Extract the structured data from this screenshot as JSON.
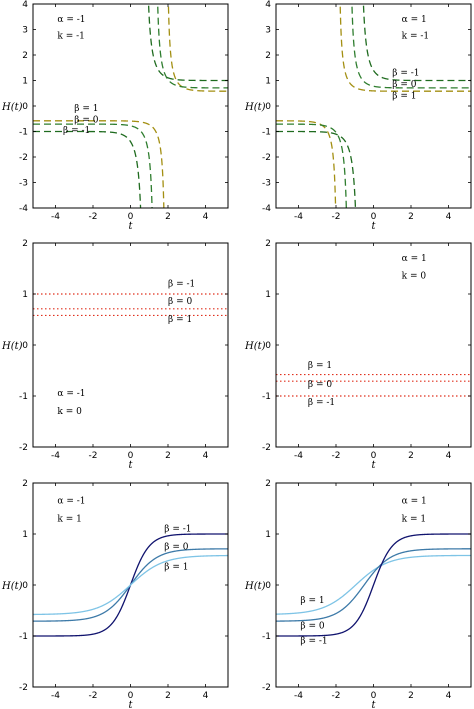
{
  "chart_data": [
    {
      "type": "line",
      "xlabel": "t",
      "ylabel": "H(t)",
      "xlim": [
        -5.2,
        5.2
      ],
      "ylim": [
        -4,
        4
      ],
      "xticks": [
        -4,
        -2,
        0,
        2,
        4
      ],
      "yticks": [
        -4,
        -3,
        -2,
        -1,
        0,
        1,
        2,
        3,
        4
      ],
      "line_style": "dashed",
      "annotations": [
        {
          "text": "α = -1",
          "x": -3.9,
          "y": 3.3
        },
        {
          "text": "k = -1",
          "x": -3.9,
          "y": 2.65
        },
        {
          "text": "β = 1",
          "x": -3.0,
          "y": -0.2
        },
        {
          "text": "β = 0",
          "x": -3.0,
          "y": -0.65
        },
        {
          "text": "β = -1",
          "x": -3.6,
          "y": -1.05
        }
      ],
      "series": [
        {
          "label": "β = 1",
          "color": "#a38f12",
          "asymptote": 1.9,
          "low": -0.58,
          "high": 0.58
        },
        {
          "label": "β = 0",
          "color": "#2e7d2e",
          "asymptote": 1.3,
          "low": -0.71,
          "high": 0.71
        },
        {
          "label": "β = -1",
          "color": "#1f6b1f",
          "asymptote": 0.75,
          "low": -1.0,
          "high": 1.0
        }
      ]
    },
    {
      "type": "line",
      "xlabel": "t",
      "ylabel": "H(t)",
      "xlim": [
        -5.2,
        5.2
      ],
      "ylim": [
        -4,
        4
      ],
      "xticks": [
        -4,
        -2,
        0,
        2,
        4
      ],
      "yticks": [
        -4,
        -3,
        -2,
        -1,
        0,
        1,
        2,
        3,
        4
      ],
      "line_style": "dashed",
      "annotations": [
        {
          "text": "α = 1",
          "x": 1.5,
          "y": 3.3
        },
        {
          "text": "k = -1",
          "x": 1.5,
          "y": 2.65
        },
        {
          "text": "β = -1",
          "x": 1.0,
          "y": 1.2
        },
        {
          "text": "β = 0",
          "x": 1.0,
          "y": 0.75
        },
        {
          "text": "β = 1",
          "x": 1.0,
          "y": 0.3
        }
      ],
      "series": [
        {
          "label": "β = 1",
          "color": "#a38f12",
          "asymptote": -1.9,
          "low": -0.58,
          "high": 0.58
        },
        {
          "label": "β = 0",
          "color": "#2e7d2e",
          "asymptote": -1.3,
          "low": -0.71,
          "high": 0.71
        },
        {
          "label": "β = -1",
          "color": "#1f6b1f",
          "asymptote": -0.75,
          "low": -1.0,
          "high": 1.0
        }
      ]
    },
    {
      "type": "line",
      "xlabel": "t",
      "ylabel": "H(t)",
      "xlim": [
        -5.2,
        5.2
      ],
      "ylim": [
        -2,
        2
      ],
      "xticks": [
        -4,
        -2,
        0,
        2,
        4
      ],
      "yticks": [
        -2,
        -1,
        0,
        1,
        2
      ],
      "line_style": "dotted",
      "annotations": [
        {
          "text": "β = -1",
          "x": 2.0,
          "y": 1.15
        },
        {
          "text": "β = 0",
          "x": 2.0,
          "y": 0.8
        },
        {
          "text": "β = 1",
          "x": 2.0,
          "y": 0.45
        },
        {
          "text": "α = -1",
          "x": -3.9,
          "y": -1.0
        },
        {
          "text": "k = 0",
          "x": -3.9,
          "y": -1.35
        }
      ],
      "series": [
        {
          "label": "β = -1",
          "color": "#e0301e",
          "value": 1.0
        },
        {
          "label": "β = 0",
          "color": "#e0301e",
          "value": 0.71
        },
        {
          "label": "β = 1",
          "color": "#e0301e",
          "value": 0.58
        }
      ]
    },
    {
      "type": "line",
      "xlabel": "t",
      "ylabel": "H(t)",
      "xlim": [
        -5.2,
        5.2
      ],
      "ylim": [
        -2,
        2
      ],
      "xticks": [
        -4,
        -2,
        0,
        2,
        4
      ],
      "yticks": [
        -2,
        -1,
        0,
        1,
        2
      ],
      "line_style": "dotted",
      "annotations": [
        {
          "text": "α = 1",
          "x": 1.5,
          "y": 1.65
        },
        {
          "text": "k = 0",
          "x": 1.5,
          "y": 1.3
        },
        {
          "text": "β = 1",
          "x": -3.5,
          "y": -0.45
        },
        {
          "text": "β = 0",
          "x": -3.5,
          "y": -0.82
        },
        {
          "text": "β = -1",
          "x": -3.5,
          "y": -1.18
        }
      ],
      "series": [
        {
          "label": "β = 1",
          "color": "#e0301e",
          "value": -0.58
        },
        {
          "label": "β = 0",
          "color": "#e0301e",
          "value": -0.71
        },
        {
          "label": "β = -1",
          "color": "#e0301e",
          "value": -1.0
        }
      ]
    },
    {
      "type": "line",
      "xlabel": "t",
      "ylabel": "H(t)",
      "xlim": [
        -5.2,
        5.2
      ],
      "ylim": [
        -2,
        2
      ],
      "xticks": [
        -4,
        -2,
        0,
        2,
        4
      ],
      "yticks": [
        -2,
        -1,
        0,
        1,
        2
      ],
      "line_style": "solid",
      "annotations": [
        {
          "text": "α = -1",
          "x": -3.9,
          "y": 1.6
        },
        {
          "text": "k = 1",
          "x": -3.9,
          "y": 1.25
        },
        {
          "text": "β = -1",
          "x": 1.8,
          "y": 1.05
        },
        {
          "text": "β = 0",
          "x": 1.8,
          "y": 0.7
        },
        {
          "text": "β = 1",
          "x": 1.8,
          "y": 0.3
        }
      ],
      "series": [
        {
          "label": "β = -1",
          "color": "#10136e",
          "amplitude": 1.0,
          "rate": 1.0
        },
        {
          "label": "β = 0",
          "color": "#3d7aa8",
          "amplitude": 0.71,
          "rate": 0.71
        },
        {
          "label": "β = 1",
          "color": "#7ec4e6",
          "amplitude": 0.58,
          "rate": 0.58
        }
      ]
    },
    {
      "type": "line",
      "xlabel": "t",
      "ylabel": "H(t)",
      "xlim": [
        -5.2,
        5.2
      ],
      "ylim": [
        -2,
        2
      ],
      "xticks": [
        -4,
        -2,
        0,
        2,
        4
      ],
      "yticks": [
        -2,
        -1,
        0,
        1,
        2
      ],
      "line_style": "solid",
      "annotations": [
        {
          "text": "α = 1",
          "x": 1.5,
          "y": 1.6
        },
        {
          "text": "k = 1",
          "x": 1.5,
          "y": 1.25
        },
        {
          "text": "β = 1",
          "x": -3.9,
          "y": -0.35
        },
        {
          "text": "β = 0",
          "x": -3.9,
          "y": -0.85
        },
        {
          "text": "β = -1",
          "x": -3.9,
          "y": -1.15
        }
      ],
      "series": [
        {
          "label": "β = 1",
          "color": "#7ec4e6",
          "amplitude": 0.58,
          "rate": 0.58,
          "center": -0.95
        },
        {
          "label": "β = 0",
          "color": "#3d7aa8",
          "amplitude": 0.71,
          "rate": 0.71,
          "center": -0.5
        },
        {
          "label": "β = -1",
          "color": "#10136e",
          "amplitude": 1.0,
          "rate": 1.0,
          "center": 0
        }
      ]
    }
  ]
}
